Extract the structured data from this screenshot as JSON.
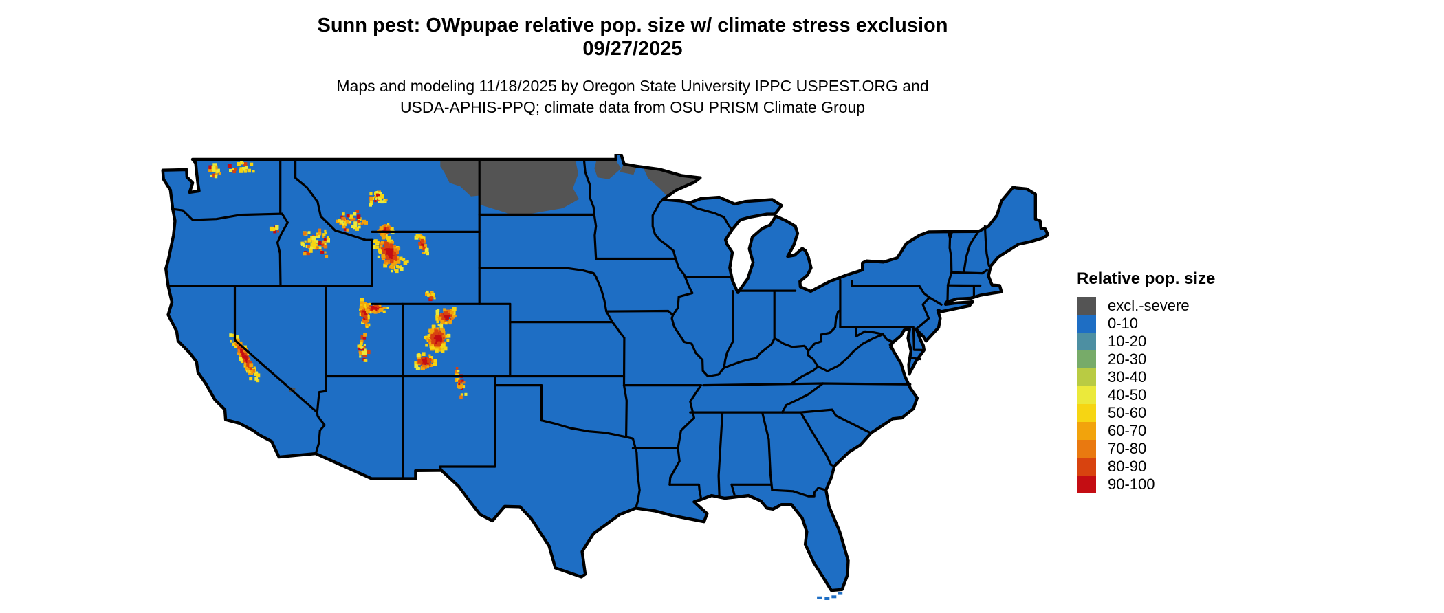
{
  "title": {
    "line1": "Sunn pest: OWpupae relative pop. size w/ climate stress exclusion",
    "line2": "09/27/2025"
  },
  "subtitle": {
    "line1": "Maps and modeling 11/18/2025 by Oregon State University IPPC USPEST.ORG and",
    "line2": "USDA-APHIS-PPQ; climate data from OSU PRISM Climate Group"
  },
  "legend": {
    "title": "Relative pop. size",
    "entries": [
      {
        "label": "excl.-severe",
        "color": "#545454"
      },
      {
        "label": "0-10",
        "color": "#1E6EC4"
      },
      {
        "label": "10-20",
        "color": "#4D8FA2"
      },
      {
        "label": "20-30",
        "color": "#77AB69"
      },
      {
        "label": "30-40",
        "color": "#B9CB43"
      },
      {
        "label": "40-50",
        "color": "#EBE93B"
      },
      {
        "label": "50-60",
        "color": "#F6D513"
      },
      {
        "label": "60-70",
        "color": "#F2A30C"
      },
      {
        "label": "70-80",
        "color": "#E97910"
      },
      {
        "label": "80-90",
        "color": "#D8430F"
      },
      {
        "label": "90-100",
        "color": "#C40D13"
      }
    ]
  },
  "map": {
    "region": "contiguous United States with state boundaries",
    "base_class": "0-10",
    "exclusion_class": "excl.-severe",
    "border_color": "#000000",
    "background": "#FFFFFF",
    "exclusion_zones": [
      {
        "name": "northeastern Montana",
        "points": [
          -106.6,
          49.0,
          -104.05,
          49.0,
          -104.05,
          47.0,
          -104.6,
          46.95,
          -105.3,
          47.5,
          -106.0,
          47.7,
          -106.35,
          48.3,
          -106.6,
          48.6
        ]
      },
      {
        "name": "northern North Dakota",
        "points": [
          -104.05,
          49.0,
          -97.8,
          49.0,
          -97.6,
          48.2,
          -97.95,
          47.4,
          -97.55,
          46.8,
          -98.6,
          46.3,
          -100.0,
          46.1,
          -101.6,
          45.85,
          -102.9,
          46.2,
          -104.05,
          46.5
        ]
      },
      {
        "name": "northwestern Minnesota",
        "points": [
          -96.4,
          49.0,
          -95.2,
          49.0,
          -94.8,
          48.5,
          -95.6,
          47.9,
          -96.35,
          48.0,
          -96.55,
          48.5
        ]
      },
      {
        "name": "north-central Minnesota border",
        "points": [
          -94.6,
          48.8,
          -93.8,
          48.6,
          -94.0,
          48.15,
          -94.9,
          48.3
        ]
      },
      {
        "name": "Minnesota arrowhead",
        "points": [
          -93.4,
          48.6,
          -92.0,
          48.35,
          -90.5,
          48.05,
          -89.75,
          47.95,
          -89.9,
          47.55,
          -90.9,
          47.15,
          -91.8,
          46.95,
          -92.3,
          47.4,
          -93.05,
          47.95
        ]
      },
      {
        "name": "Yellowstone corner speck",
        "points": [
          -110.8,
          44.5,
          -110.45,
          44.45,
          -110.5,
          44.2,
          -110.85,
          44.25
        ]
      },
      {
        "name": "Death Valley speck",
        "points": [
          -116.4,
          36.4,
          -116.05,
          36.35,
          -116.1,
          36.1,
          -116.45,
          36.15
        ]
      }
    ],
    "hotspot_clusters": [
      {
        "name": "Greater Yellowstone / Wind River Range (WY)",
        "lon": -109.9,
        "lat": 43.8,
        "sx": 0.75,
        "sy": 1.25,
        "rot": 35,
        "n": 150,
        "intensity": "hot"
      },
      {
        "name": "Absaroka-Beartooth (MT/WY)",
        "lon": -110.2,
        "lat": 45.1,
        "sx": 0.55,
        "sy": 0.35,
        "rot": 20,
        "n": 35,
        "intensity": "hot"
      },
      {
        "name": "Bighorn Mountains (WY)",
        "lon": -107.8,
        "lat": 44.3,
        "sx": 0.26,
        "sy": 0.7,
        "rot": 18,
        "n": 40,
        "intensity": "hot"
      },
      {
        "name": "South-central Wyoming ranges",
        "lon": -107.2,
        "lat": 41.45,
        "sx": 0.4,
        "sy": 0.3,
        "rot": 0,
        "n": 14,
        "intensity": "sparse"
      },
      {
        "name": "Wasatch Range (UT)",
        "lon": -111.55,
        "lat": 40.45,
        "sx": 0.28,
        "sy": 0.85,
        "rot": 8,
        "n": 55,
        "intensity": "hot"
      },
      {
        "name": "Uinta Mountains (UT)",
        "lon": -110.85,
        "lat": 40.78,
        "sx": 0.85,
        "sy": 0.3,
        "rot": 0,
        "n": 60,
        "intensity": "hot"
      },
      {
        "name": "Central Utah plateaus",
        "lon": -111.6,
        "lat": 38.6,
        "sx": 0.45,
        "sy": 0.95,
        "rot": 12,
        "n": 28,
        "intensity": "sparse"
      },
      {
        "name": "Park Range / Front Range (CO)",
        "lon": -106.2,
        "lat": 40.3,
        "sx": 0.75,
        "sy": 0.55,
        "rot": 0,
        "n": 55,
        "intensity": "hot"
      },
      {
        "name": "Central Colorado Rockies",
        "lon": -106.8,
        "lat": 39.1,
        "sx": 0.85,
        "sy": 0.8,
        "rot": 0,
        "n": 130,
        "intensity": "hot"
      },
      {
        "name": "San Juan Mountains (CO)",
        "lon": -107.6,
        "lat": 37.8,
        "sx": 0.8,
        "sy": 0.5,
        "rot": 0,
        "n": 60,
        "intensity": "hot"
      },
      {
        "name": "Sangre de Cristo (CO/NM)",
        "lon": -105.3,
        "lat": 36.6,
        "sx": 0.3,
        "sy": 1.0,
        "rot": 10,
        "n": 30,
        "intensity": "sparse"
      },
      {
        "name": "Sierra Nevada (CA)",
        "lon": -119.35,
        "lat": 38.05,
        "sx": 0.32,
        "sy": 1.6,
        "rot": 32,
        "n": 150,
        "intensity": "hot"
      },
      {
        "name": "Central Idaho Rockies",
        "lon": -114.7,
        "lat": 44.4,
        "sx": 1.15,
        "sy": 0.85,
        "rot": 0,
        "n": 65,
        "intensity": "sparse"
      },
      {
        "name": "Southwest Montana ranges",
        "lon": -112.4,
        "lat": 45.6,
        "sx": 1.0,
        "sy": 0.65,
        "rot": 0,
        "n": 40,
        "intensity": "sparse"
      },
      {
        "name": "Central Montana island ranges",
        "lon": -110.5,
        "lat": 46.8,
        "sx": 0.85,
        "sy": 0.5,
        "rot": 0,
        "n": 30,
        "intensity": "sparse"
      },
      {
        "name": "North Cascades (WA)",
        "lon": -121.3,
        "lat": 48.35,
        "sx": 0.35,
        "sy": 0.55,
        "rot": 0,
        "n": 20,
        "intensity": "sparse"
      },
      {
        "name": "Okanogan Highlands (WA)",
        "lon": -119.6,
        "lat": 48.55,
        "sx": 0.9,
        "sy": 0.35,
        "rot": 0,
        "n": 18,
        "intensity": "sparse"
      },
      {
        "name": "Wallowa Mountains (OR)",
        "lon": -117.4,
        "lat": 45.15,
        "sx": 0.3,
        "sy": 0.25,
        "rot": 0,
        "n": 10,
        "intensity": "sparse"
      }
    ]
  }
}
